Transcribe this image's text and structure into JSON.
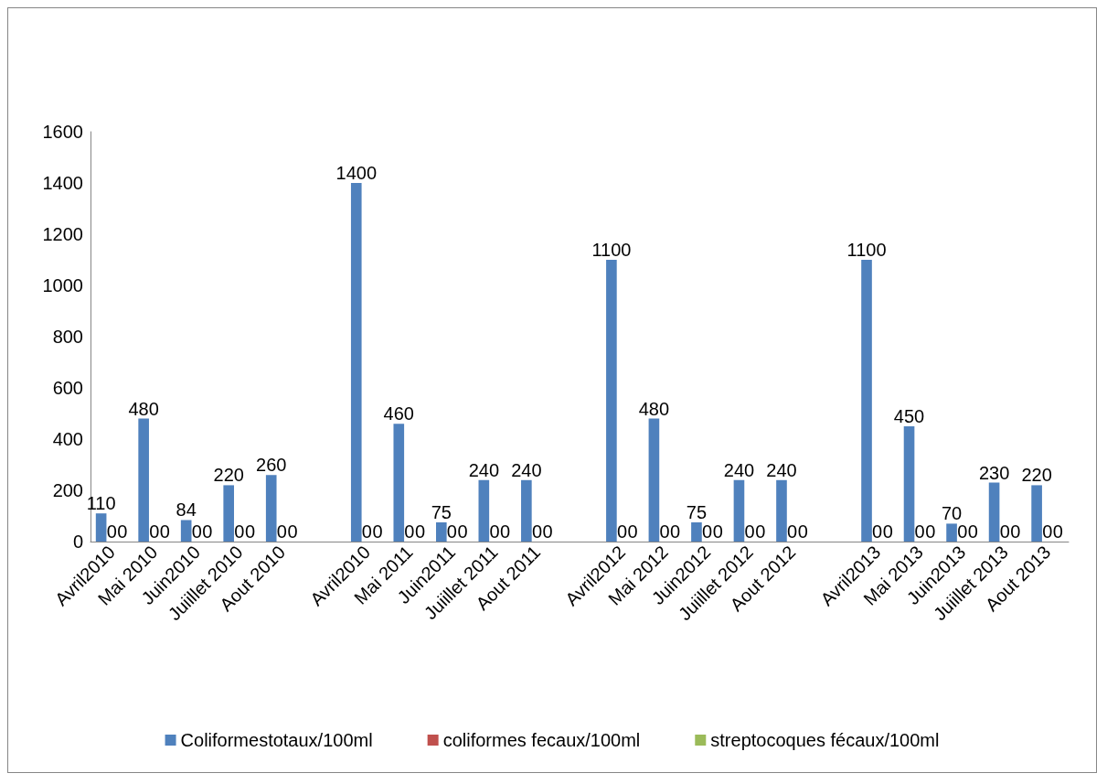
{
  "chart_data": {
    "type": "bar",
    "categories": [
      "Avril2010",
      "Mai 2010",
      "Juin2010",
      "Juiillet 2010",
      "Aout 2010",
      null,
      "Avril2010",
      "Mai 2011",
      "Juin2011",
      "Juiillet 2011",
      "Aout 2011",
      null,
      "Avril2012",
      "Mai 2012",
      "Juin2012",
      "Juiillet 2012",
      "Aout 2012",
      null,
      "Avril2013",
      "Mai 2013",
      "Juin2013",
      "Juiillet 2013",
      "Aout 2013"
    ],
    "series": [
      {
        "name": "Coliformestotaux/100ml",
        "color": "#4f81bd",
        "values": [
          110,
          480,
          84,
          220,
          260,
          null,
          1400,
          460,
          75,
          240,
          240,
          null,
          1100,
          480,
          75,
          240,
          240,
          null,
          1100,
          450,
          70,
          230,
          220
        ]
      },
      {
        "name": "coliformes fecaux/100ml",
        "color": "#c0504d",
        "values": [
          0,
          0,
          0,
          0,
          0,
          null,
          0,
          0,
          0,
          0,
          0,
          null,
          0,
          0,
          0,
          0,
          0,
          null,
          0,
          0,
          0,
          0,
          0
        ]
      },
      {
        "name": "streptocoques fécaux/100ml",
        "color": "#9bbb59",
        "values": [
          0,
          0,
          0,
          0,
          0,
          null,
          0,
          0,
          0,
          0,
          0,
          null,
          0,
          0,
          0,
          0,
          0,
          null,
          0,
          0,
          0,
          0,
          0
        ]
      }
    ],
    "ylim": [
      0,
      1600
    ],
    "yticks": [
      0,
      200,
      400,
      600,
      800,
      1000,
      1200,
      1400,
      1600
    ],
    "grid": false,
    "legend": "bottom",
    "data_labels": true
  }
}
